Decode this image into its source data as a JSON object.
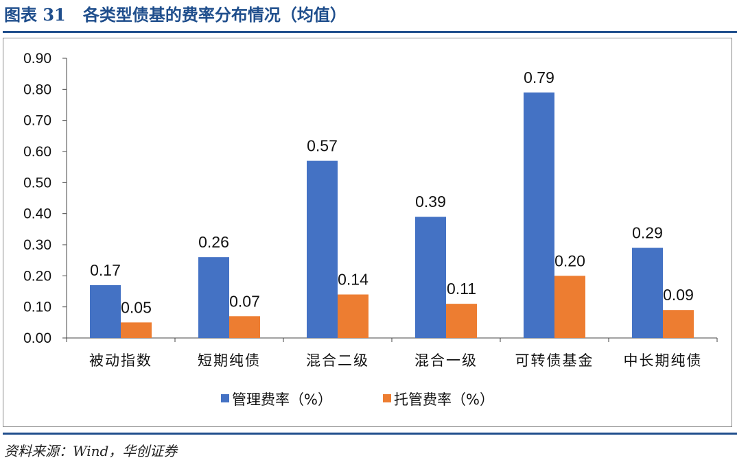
{
  "title": "图表 31   各类型债基的费率分布情况（均值）",
  "source": "资料来源：Wind，华创证券",
  "chart_data": {
    "type": "bar",
    "categories": [
      "被动指数",
      "短期纯债",
      "混合二级",
      "混合一级",
      "可转债基金",
      "中长期纯债"
    ],
    "series": [
      {
        "name": "管理费率（%）",
        "color": "#4472c4",
        "values": [
          0.17,
          0.26,
          0.57,
          0.39,
          0.79,
          0.29
        ]
      },
      {
        "name": "托管费率（%）",
        "color": "#ed7d31",
        "values": [
          0.05,
          0.07,
          0.14,
          0.11,
          0.2,
          0.09
        ]
      }
    ],
    "ylim": [
      0,
      0.9
    ],
    "yticks": [
      "0.00",
      "0.10",
      "0.20",
      "0.30",
      "0.40",
      "0.50",
      "0.60",
      "0.70",
      "0.80",
      "0.90"
    ],
    "grid": false,
    "legend": "bottom"
  }
}
